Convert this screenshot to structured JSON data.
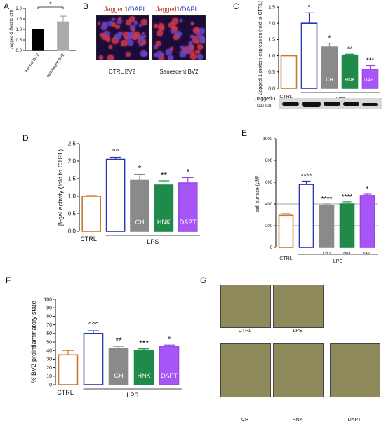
{
  "panel_labels": {
    "A": "A",
    "B": "B",
    "C": "C",
    "D": "D",
    "E": "E",
    "F": "F",
    "G": "G"
  },
  "chart_data": [
    {
      "id": "A",
      "type": "bar",
      "categories": [
        "normal BV2",
        "senescent BV2"
      ],
      "values": [
        1.0,
        1.35
      ],
      "errors": [
        0.0,
        0.28
      ],
      "ylabel": "Jagged-1 (fold to ctrl)",
      "ylim": [
        0,
        2
      ],
      "yticks": [
        0,
        0.5,
        1.0,
        1.5,
        2.0
      ],
      "tick_labels": [
        "0.0",
        "0.5",
        "1.0",
        "1.5",
        "2.0"
      ],
      "significance": "*",
      "colors": [
        "#000000",
        "#aaaaaa"
      ]
    },
    {
      "id": "C",
      "type": "bar",
      "categories": [
        "CTRL",
        "LPS",
        "CH",
        "HNK",
        "DAPT"
      ],
      "values": [
        1.0,
        2.0,
        1.27,
        1.02,
        0.58
      ],
      "errors": [
        0.02,
        0.32,
        0.12,
        0.03,
        0.12
      ],
      "ylabel": "Jagged-1 protein expression (fold to CTRL)",
      "ylim": [
        0,
        2.5
      ],
      "yticks": [
        0,
        0.5,
        1.0,
        1.5,
        2.0,
        2.5
      ],
      "tick_labels": [
        "0.0",
        "0.5",
        "1.0",
        "1.5",
        "2.0",
        "2.5"
      ],
      "bar_labels": [
        "",
        "",
        "CH",
        "HNK",
        "DAPT"
      ],
      "annotations": [
        "",
        "°",
        "*",
        "**",
        "***"
      ],
      "xlabels": {
        "ctrl": "CTRL",
        "group": "LPS"
      },
      "blot_label": "Jagged-1",
      "blot_sublabel": "(130 kDa)",
      "colors": [
        "#c87a2a",
        "#2a35b0",
        "#8a8a8a",
        "#1f8a4a",
        "#9a4ae0"
      ],
      "fills": [
        "#ffffff",
        "#ffffff",
        "#8a8a8a",
        "#1f8a4a",
        "#a855f7"
      ]
    },
    {
      "id": "D",
      "type": "bar",
      "categories": [
        "CTRL",
        "LPS",
        "CH",
        "HNK",
        "DAPT"
      ],
      "values": [
        1.0,
        2.05,
        1.45,
        1.32,
        1.38
      ],
      "errors": [
        0.02,
        0.06,
        0.18,
        0.12,
        0.15
      ],
      "ylabel": "β-gal activity (fold to CTRL)",
      "ylim": [
        0,
        2.5
      ],
      "yticks": [
        0,
        0.5,
        1.0,
        1.5,
        2.0,
        2.5
      ],
      "tick_labels": [
        "0.0",
        "0.5",
        "1.0",
        "1.5",
        "2.0",
        "2.5"
      ],
      "bar_labels": [
        "",
        "",
        "CH",
        "HNK",
        "DAPT"
      ],
      "annotations": [
        "",
        "°°",
        "*",
        "**",
        "*"
      ],
      "xlabels": {
        "ctrl": "CTRL",
        "group": "LPS"
      },
      "colors": [
        "#c87a2a",
        "#2a35b0",
        "#8a8a8a",
        "#1f8a4a",
        "#9a4ae0"
      ],
      "fills": [
        "#ffffff",
        "#ffffff",
        "#8a8a8a",
        "#1f8a4a",
        "#a855f7"
      ]
    },
    {
      "id": "E",
      "type": "bar",
      "categories": [
        "CTRL",
        "LPS",
        "CH 3",
        "HNK",
        "DAPT"
      ],
      "values": [
        295,
        580,
        385,
        400,
        478
      ],
      "errors": [
        15,
        30,
        15,
        20,
        12
      ],
      "ylabel": "cell surface (μM²)",
      "ylim": [
        0,
        1000
      ],
      "yticks": [
        0,
        200,
        400,
        600,
        800,
        1000
      ],
      "tick_labels": [
        "0",
        "200",
        "400",
        "600",
        "800",
        "1000"
      ],
      "hlines": [
        200,
        400
      ],
      "bar_labels": [
        "",
        "",
        "",
        "",
        ""
      ],
      "annotations": [
        "",
        "****",
        "****",
        "****",
        "*"
      ],
      "xlabels": {
        "ctrl": "CTRL",
        "group": "LPS"
      },
      "colors": [
        "#c87a2a",
        "#2a35b0",
        "#8a8a8a",
        "#1f8a4a",
        "#9a4ae0"
      ],
      "fills": [
        "#ffffff",
        "#ffffff",
        "#8a8a8a",
        "#1f8a4a",
        "#a855f7"
      ]
    },
    {
      "id": "F",
      "type": "bar",
      "categories": [
        "CTRL",
        "LPS",
        "CH",
        "HNK",
        "DAPT"
      ],
      "values": [
        35,
        60,
        42,
        40,
        45
      ],
      "errors": [
        5,
        3,
        3,
        2,
        1.5
      ],
      "ylabel": "% BV2-proinflammatory state",
      "ylim": [
        0,
        100
      ],
      "yticks": [
        0,
        10,
        20,
        30,
        40,
        50,
        60,
        70,
        80,
        90,
        100
      ],
      "tick_labels": [
        "0",
        "10",
        "20",
        "30",
        "40",
        "50",
        "60",
        "70",
        "80",
        "90",
        "100"
      ],
      "bar_labels": [
        "",
        "",
        "CH",
        "HNK",
        "DAPT"
      ],
      "annotations": [
        "",
        "°°°",
        "**",
        "***",
        "*"
      ],
      "xlabels": {
        "ctrl": "CTRL",
        "group": "LPS"
      },
      "colors": [
        "#c87a2a",
        "#2a35b0",
        "#8a8a8a",
        "#1f8a4a",
        "#9a4ae0"
      ],
      "fills": [
        "#ffffff",
        "#ffffff",
        "#8a8a8a",
        "#1f8a4a",
        "#a855f7"
      ]
    }
  ],
  "panel_b": {
    "header_left_a": "Jagged1",
    "header_left_b": "/DAPI",
    "header_right_a": "Jagged1",
    "header_right_b": "/DAPI",
    "label_left": "CTRL BV2",
    "label_right": "Senescent BV2"
  },
  "panel_g": {
    "labels": [
      "CTRL",
      "LPS",
      "CH",
      "HNK",
      "DAPT"
    ]
  }
}
